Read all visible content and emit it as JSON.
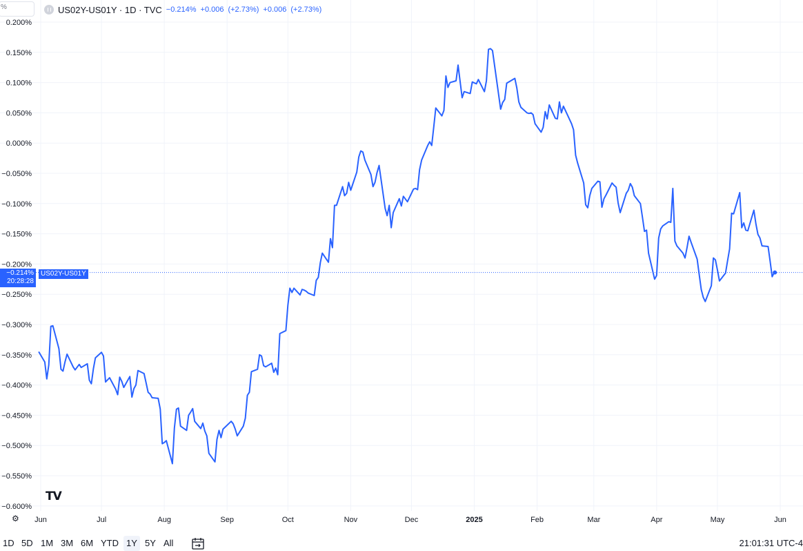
{
  "legend": {
    "symbol_box": "%",
    "title": "US02Y-US01Y · 1D · TVC",
    "last": "−0.214%",
    "change": "+0.006",
    "change_pct": "(+2.73%)",
    "change2": "+0.006",
    "change2_pct": "(+2.73%)"
  },
  "price_badge": {
    "value": "−0.214%",
    "countdown": "20:28:28"
  },
  "series_badge": "US02Y-US01Y",
  "colors": {
    "line": "#2962ff",
    "grid": "#f0f3fa",
    "badge": "#2962ff"
  },
  "icons": {
    "logo": "tradingview-logo",
    "settings": "settings-icon",
    "calendar": "date-range-icon"
  },
  "range_buttons": [
    "1D",
    "5D",
    "1M",
    "3M",
    "6M",
    "YTD",
    "1Y",
    "5Y",
    "All"
  ],
  "active_range": "1Y",
  "clock": "21:01:31 UTC-4",
  "chart_data": {
    "type": "line",
    "title": "US02Y-US01Y · 1D · TVC",
    "y_unit": "%",
    "ylim": [
      -0.6,
      0.2
    ],
    "y_ticks": [
      "0.200%",
      "0.150%",
      "0.100%",
      "0.050%",
      "0.000%",
      "−0.050%",
      "−0.100%",
      "−0.150%",
      "−0.200%",
      "−0.250%",
      "−0.300%",
      "−0.350%",
      "−0.400%",
      "−0.450%",
      "−0.500%",
      "−0.550%",
      "−0.600%"
    ],
    "x_ticks": [
      "Jun",
      "Jul",
      "Aug",
      "Sep",
      "Oct",
      "Nov",
      "Dec",
      "2025",
      "Feb",
      "Mar",
      "Apr",
      "May",
      "Jun"
    ],
    "x_range": [
      "2024-06-01",
      "2025-06-13"
    ],
    "grid": true,
    "series": [
      {
        "name": "US02Y-US01Y",
        "points": [
          [
            "2024-05-31",
            -0.345
          ],
          [
            "2024-06-03",
            -0.362
          ],
          [
            "2024-06-04",
            -0.39
          ],
          [
            "2024-06-05",
            -0.367
          ],
          [
            "2024-06-06",
            -0.303
          ],
          [
            "2024-06-07",
            -0.302
          ],
          [
            "2024-06-10",
            -0.34
          ],
          [
            "2024-06-11",
            -0.374
          ],
          [
            "2024-06-12",
            -0.377
          ],
          [
            "2024-06-13",
            -0.362
          ],
          [
            "2024-06-14",
            -0.349
          ],
          [
            "2024-06-17",
            -0.37
          ],
          [
            "2024-06-18",
            -0.375
          ],
          [
            "2024-06-20",
            -0.366
          ],
          [
            "2024-06-21",
            -0.371
          ],
          [
            "2024-06-24",
            -0.365
          ],
          [
            "2024-06-25",
            -0.392
          ],
          [
            "2024-06-26",
            -0.398
          ],
          [
            "2024-06-27",
            -0.373
          ],
          [
            "2024-06-28",
            -0.355
          ],
          [
            "2024-07-01",
            -0.346
          ],
          [
            "2024-07-02",
            -0.352
          ],
          [
            "2024-07-03",
            -0.395
          ],
          [
            "2024-07-05",
            -0.388
          ],
          [
            "2024-07-08",
            -0.407
          ],
          [
            "2024-07-09",
            -0.416
          ],
          [
            "2024-07-10",
            -0.387
          ],
          [
            "2024-07-11",
            -0.394
          ],
          [
            "2024-07-12",
            -0.404
          ],
          [
            "2024-07-15",
            -0.386
          ],
          [
            "2024-07-16",
            -0.42
          ],
          [
            "2024-07-17",
            -0.406
          ],
          [
            "2024-07-18",
            -0.4
          ],
          [
            "2024-07-19",
            -0.376
          ],
          [
            "2024-07-22",
            -0.381
          ],
          [
            "2024-07-23",
            -0.396
          ],
          [
            "2024-07-24",
            -0.412
          ],
          [
            "2024-07-25",
            -0.415
          ],
          [
            "2024-07-26",
            -0.421
          ],
          [
            "2024-07-29",
            -0.422
          ],
          [
            "2024-07-30",
            -0.44
          ],
          [
            "2024-07-31",
            -0.497
          ],
          [
            "2024-08-01",
            -0.495
          ],
          [
            "2024-08-02",
            -0.492
          ],
          [
            "2024-08-05",
            -0.53
          ],
          [
            "2024-08-06",
            -0.471
          ],
          [
            "2024-08-07",
            -0.44
          ],
          [
            "2024-08-08",
            -0.438
          ],
          [
            "2024-08-09",
            -0.468
          ],
          [
            "2024-08-12",
            -0.475
          ],
          [
            "2024-08-13",
            -0.45
          ],
          [
            "2024-08-14",
            -0.445
          ],
          [
            "2024-08-15",
            -0.439
          ],
          [
            "2024-08-16",
            -0.46
          ],
          [
            "2024-08-19",
            -0.472
          ],
          [
            "2024-08-20",
            -0.463
          ],
          [
            "2024-08-21",
            -0.476
          ],
          [
            "2024-08-22",
            -0.484
          ],
          [
            "2024-08-23",
            -0.513
          ],
          [
            "2024-08-26",
            -0.527
          ],
          [
            "2024-08-27",
            -0.49
          ],
          [
            "2024-08-28",
            -0.475
          ],
          [
            "2024-08-29",
            -0.487
          ],
          [
            "2024-08-30",
            -0.473
          ],
          [
            "2024-09-03",
            -0.46
          ],
          [
            "2024-09-04",
            -0.464
          ],
          [
            "2024-09-05",
            -0.473
          ],
          [
            "2024-09-06",
            -0.484
          ],
          [
            "2024-09-09",
            -0.468
          ],
          [
            "2024-09-10",
            -0.455
          ],
          [
            "2024-09-11",
            -0.417
          ],
          [
            "2024-09-12",
            -0.412
          ],
          [
            "2024-09-13",
            -0.378
          ],
          [
            "2024-09-16",
            -0.374
          ],
          [
            "2024-09-17",
            -0.35
          ],
          [
            "2024-09-18",
            -0.352
          ],
          [
            "2024-09-19",
            -0.368
          ],
          [
            "2024-09-20",
            -0.37
          ],
          [
            "2024-09-23",
            -0.364
          ],
          [
            "2024-09-24",
            -0.379
          ],
          [
            "2024-09-25",
            -0.372
          ],
          [
            "2024-09-26",
            -0.383
          ],
          [
            "2024-09-27",
            -0.315
          ],
          [
            "2024-09-30",
            -0.31
          ],
          [
            "2024-10-01",
            -0.268
          ],
          [
            "2024-10-02",
            -0.24
          ],
          [
            "2024-10-03",
            -0.247
          ],
          [
            "2024-10-04",
            -0.24
          ],
          [
            "2024-10-07",
            -0.251
          ],
          [
            "2024-10-08",
            -0.242
          ],
          [
            "2024-10-09",
            -0.243
          ],
          [
            "2024-10-10",
            -0.245
          ],
          [
            "2024-10-11",
            -0.248
          ],
          [
            "2024-10-14",
            -0.252
          ],
          [
            "2024-10-15",
            -0.227
          ],
          [
            "2024-10-16",
            -0.222
          ],
          [
            "2024-10-17",
            -0.198
          ],
          [
            "2024-10-18",
            -0.182
          ],
          [
            "2024-10-21",
            -0.197
          ],
          [
            "2024-10-22",
            -0.158
          ],
          [
            "2024-10-23",
            -0.173
          ],
          [
            "2024-10-24",
            -0.103
          ],
          [
            "2024-10-25",
            -0.103
          ],
          [
            "2024-10-28",
            -0.072
          ],
          [
            "2024-10-29",
            -0.087
          ],
          [
            "2024-10-30",
            -0.083
          ],
          [
            "2024-10-31",
            -0.065
          ],
          [
            "2024-11-01",
            -0.078
          ],
          [
            "2024-11-04",
            -0.048
          ],
          [
            "2024-11-05",
            -0.023
          ],
          [
            "2024-11-06",
            -0.013
          ],
          [
            "2024-11-07",
            -0.015
          ],
          [
            "2024-11-08",
            -0.028
          ],
          [
            "2024-11-11",
            -0.052
          ],
          [
            "2024-11-12",
            -0.072
          ],
          [
            "2024-11-13",
            -0.065
          ],
          [
            "2024-11-14",
            -0.049
          ],
          [
            "2024-11-15",
            -0.037
          ],
          [
            "2024-11-18",
            -0.108
          ],
          [
            "2024-11-19",
            -0.12
          ],
          [
            "2024-11-20",
            -0.103
          ],
          [
            "2024-11-21",
            -0.14
          ],
          [
            "2024-11-22",
            -0.115
          ],
          [
            "2024-11-25",
            -0.092
          ],
          [
            "2024-11-26",
            -0.104
          ],
          [
            "2024-11-27",
            -0.088
          ],
          [
            "2024-11-29",
            -0.097
          ],
          [
            "2024-12-02",
            -0.076
          ],
          [
            "2024-12-03",
            -0.075
          ],
          [
            "2024-12-04",
            -0.077
          ],
          [
            "2024-12-05",
            -0.044
          ],
          [
            "2024-12-06",
            -0.028
          ],
          [
            "2024-12-09",
            -0.004
          ],
          [
            "2024-12-10",
            0.002
          ],
          [
            "2024-12-11",
            -0.004
          ],
          [
            "2024-12-12",
            0.027
          ],
          [
            "2024-12-13",
            0.058
          ],
          [
            "2024-12-16",
            0.045
          ],
          [
            "2024-12-17",
            0.054
          ],
          [
            "2024-12-18",
            0.111
          ],
          [
            "2024-12-19",
            0.092
          ],
          [
            "2024-12-20",
            0.1
          ],
          [
            "2024-12-23",
            0.103
          ],
          [
            "2024-12-24",
            0.129
          ],
          [
            "2024-12-26",
            0.075
          ],
          [
            "2024-12-27",
            0.085
          ],
          [
            "2024-12-30",
            0.082
          ],
          [
            "2024-12-31",
            0.101
          ],
          [
            "2025-01-02",
            0.098
          ],
          [
            "2025-01-03",
            0.105
          ],
          [
            "2025-01-06",
            0.085
          ],
          [
            "2025-01-07",
            0.103
          ],
          [
            "2025-01-08",
            0.155
          ],
          [
            "2025-01-09",
            0.156
          ],
          [
            "2025-01-10",
            0.153
          ],
          [
            "2025-01-13",
            0.08
          ],
          [
            "2025-01-14",
            0.056
          ],
          [
            "2025-01-15",
            0.067
          ],
          [
            "2025-01-16",
            0.072
          ],
          [
            "2025-01-17",
            0.099
          ],
          [
            "2025-01-21",
            0.107
          ],
          [
            "2025-01-22",
            0.091
          ],
          [
            "2025-01-23",
            0.068
          ],
          [
            "2025-01-24",
            0.059
          ],
          [
            "2025-01-27",
            0.05
          ],
          [
            "2025-01-28",
            0.049
          ],
          [
            "2025-01-29",
            0.05
          ],
          [
            "2025-01-30",
            0.047
          ],
          [
            "2025-01-31",
            0.032
          ],
          [
            "2025-02-03",
            0.018
          ],
          [
            "2025-02-04",
            0.026
          ],
          [
            "2025-02-05",
            0.052
          ],
          [
            "2025-02-06",
            0.04
          ],
          [
            "2025-02-07",
            0.063
          ],
          [
            "2025-02-10",
            0.041
          ],
          [
            "2025-02-11",
            0.04
          ],
          [
            "2025-02-12",
            0.068
          ],
          [
            "2025-02-13",
            0.05
          ],
          [
            "2025-02-14",
            0.061
          ],
          [
            "2025-02-18",
            0.032
          ],
          [
            "2025-02-19",
            0.022
          ],
          [
            "2025-02-20",
            -0.02
          ],
          [
            "2025-02-21",
            -0.033
          ],
          [
            "2025-02-24",
            -0.066
          ],
          [
            "2025-02-25",
            -0.102
          ],
          [
            "2025-02-26",
            -0.107
          ],
          [
            "2025-02-27",
            -0.087
          ],
          [
            "2025-02-28",
            -0.075
          ],
          [
            "2025-03-03",
            -0.063
          ],
          [
            "2025-03-04",
            -0.064
          ],
          [
            "2025-03-05",
            -0.106
          ],
          [
            "2025-03-06",
            -0.092
          ],
          [
            "2025-03-07",
            -0.086
          ],
          [
            "2025-03-10",
            -0.066
          ],
          [
            "2025-03-11",
            -0.07
          ],
          [
            "2025-03-12",
            -0.073
          ],
          [
            "2025-03-13",
            -0.099
          ],
          [
            "2025-03-14",
            -0.115
          ],
          [
            "2025-03-17",
            -0.083
          ],
          [
            "2025-03-18",
            -0.078
          ],
          [
            "2025-03-19",
            -0.067
          ],
          [
            "2025-03-20",
            -0.073
          ],
          [
            "2025-03-21",
            -0.087
          ],
          [
            "2025-03-24",
            -0.1
          ],
          [
            "2025-03-25",
            -0.123
          ],
          [
            "2025-03-26",
            -0.146
          ],
          [
            "2025-03-27",
            -0.144
          ],
          [
            "2025-03-28",
            -0.182
          ],
          [
            "2025-03-31",
            -0.225
          ],
          [
            "2025-04-01",
            -0.219
          ],
          [
            "2025-04-02",
            -0.157
          ],
          [
            "2025-04-03",
            -0.142
          ],
          [
            "2025-04-04",
            -0.137
          ],
          [
            "2025-04-07",
            -0.13
          ],
          [
            "2025-04-08",
            -0.131
          ],
          [
            "2025-04-09",
            -0.075
          ],
          [
            "2025-04-10",
            -0.162
          ],
          [
            "2025-04-11",
            -0.17
          ],
          [
            "2025-04-14",
            -0.182
          ],
          [
            "2025-04-15",
            -0.19
          ],
          [
            "2025-04-16",
            -0.173
          ],
          [
            "2025-04-17",
            -0.154
          ],
          [
            "2025-04-18",
            -0.164
          ],
          [
            "2025-04-21",
            -0.192
          ],
          [
            "2025-04-22",
            -0.217
          ],
          [
            "2025-04-23",
            -0.242
          ],
          [
            "2025-04-24",
            -0.255
          ],
          [
            "2025-04-25",
            -0.262
          ],
          [
            "2025-04-28",
            -0.236
          ],
          [
            "2025-04-29",
            -0.19
          ],
          [
            "2025-04-30",
            -0.193
          ],
          [
            "2025-05-01",
            -0.21
          ],
          [
            "2025-05-02",
            -0.228
          ],
          [
            "2025-05-05",
            -0.215
          ],
          [
            "2025-05-06",
            -0.195
          ],
          [
            "2025-05-07",
            -0.175
          ],
          [
            "2025-05-08",
            -0.116
          ],
          [
            "2025-05-09",
            -0.117
          ],
          [
            "2025-05-12",
            -0.082
          ],
          [
            "2025-05-13",
            -0.14
          ],
          [
            "2025-05-14",
            -0.132
          ],
          [
            "2025-05-15",
            -0.144
          ],
          [
            "2025-05-16",
            -0.145
          ],
          [
            "2025-05-19",
            -0.111
          ],
          [
            "2025-05-20",
            -0.134
          ],
          [
            "2025-05-21",
            -0.151
          ],
          [
            "2025-05-22",
            -0.157
          ],
          [
            "2025-05-23",
            -0.17
          ],
          [
            "2025-05-26",
            -0.171
          ],
          [
            "2025-05-27",
            -0.195
          ],
          [
            "2025-05-28",
            -0.221
          ],
          [
            "2025-05-29",
            -0.214
          ]
        ]
      }
    ],
    "last_value": -0.214,
    "annotations": [
      "−0.214%",
      "20:28:28",
      "US02Y-US01Y"
    ]
  }
}
